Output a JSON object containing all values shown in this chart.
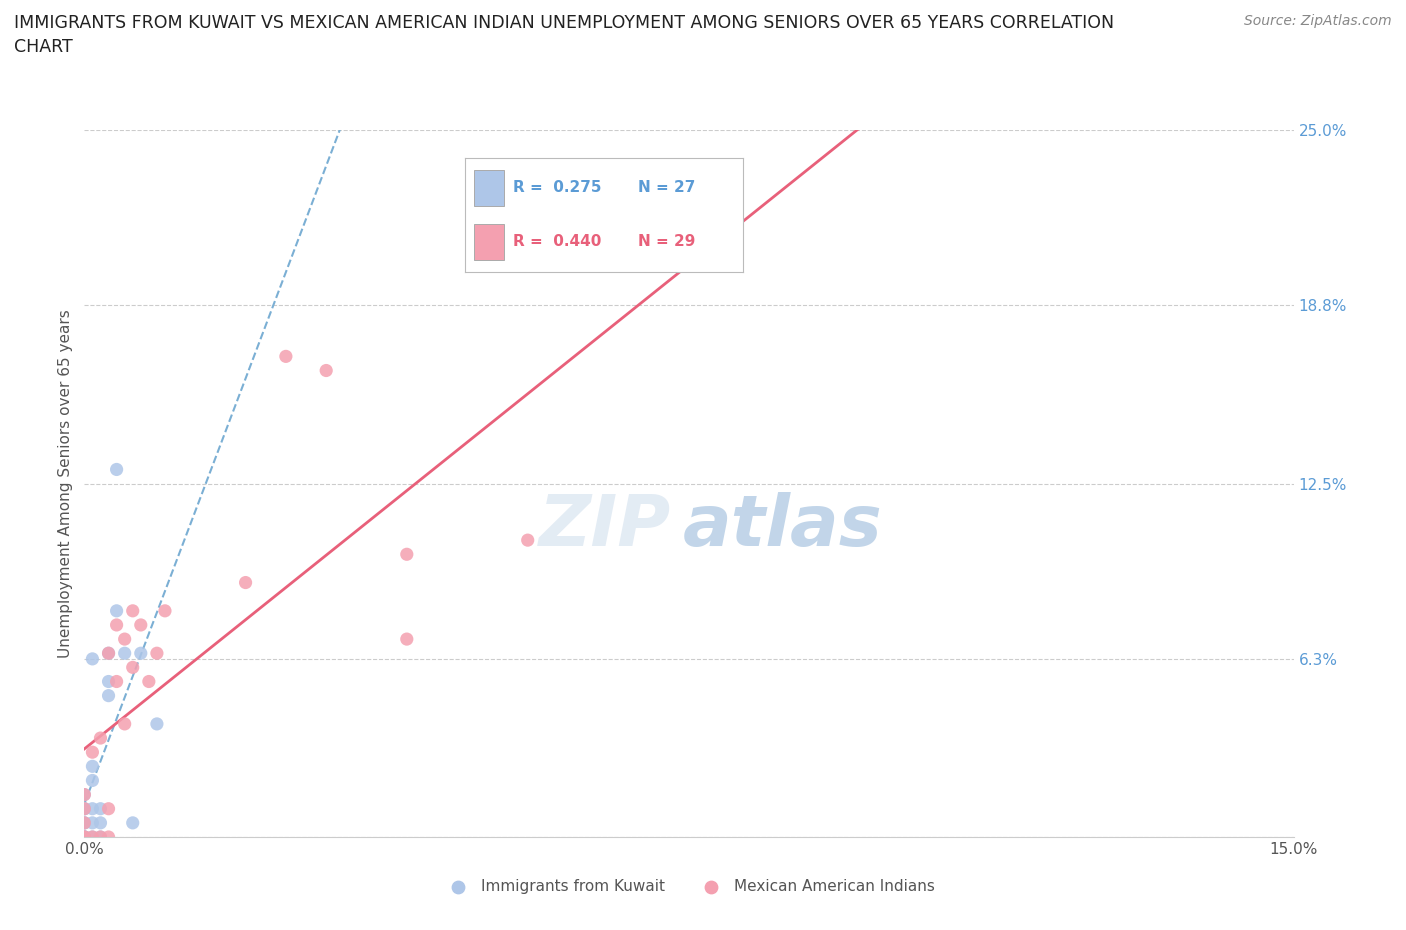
{
  "title": "IMMIGRANTS FROM KUWAIT VS MEXICAN AMERICAN INDIAN UNEMPLOYMENT AMONG SENIORS OVER 65 YEARS CORRELATION\nCHART",
  "source": "Source: ZipAtlas.com",
  "ylabel": "Unemployment Among Seniors over 65 years",
  "xlim": [
    0.0,
    0.15
  ],
  "ylim": [
    0.0,
    0.25
  ],
  "xticks": [
    0.0,
    0.03,
    0.06,
    0.09,
    0.12,
    0.15
  ],
  "xticklabels": [
    "0.0%",
    "",
    "",
    "",
    "",
    "15.0%"
  ],
  "yticks": [
    0.0,
    0.063,
    0.125,
    0.188,
    0.25
  ],
  "yticklabels": [
    "",
    "6.3%",
    "12.5%",
    "18.8%",
    "25.0%"
  ],
  "background_color": "#ffffff",
  "grid_color": "#cccccc",
  "kuwait_x": [
    0.0,
    0.0,
    0.0,
    0.0,
    0.0,
    0.0,
    0.0,
    0.0,
    0.0,
    0.001,
    0.001,
    0.001,
    0.001,
    0.001,
    0.001,
    0.002,
    0.002,
    0.002,
    0.003,
    0.003,
    0.003,
    0.004,
    0.004,
    0.005,
    0.006,
    0.007,
    0.009
  ],
  "kuwait_y": [
    0.0,
    0.0,
    0.0,
    0.0,
    0.005,
    0.005,
    0.01,
    0.01,
    0.015,
    0.0,
    0.005,
    0.01,
    0.02,
    0.025,
    0.063,
    0.0,
    0.005,
    0.01,
    0.05,
    0.055,
    0.065,
    0.08,
    0.13,
    0.065,
    0.005,
    0.065,
    0.04
  ],
  "kuwait_color": "#aec6e8",
  "kuwait_R": 0.275,
  "kuwait_N": 27,
  "kuwait_line_color": "#7bafd4",
  "kuwait_line_style": "--",
  "mexican_x": [
    0.0,
    0.0,
    0.0,
    0.0,
    0.0,
    0.001,
    0.001,
    0.002,
    0.002,
    0.003,
    0.003,
    0.003,
    0.004,
    0.004,
    0.005,
    0.005,
    0.006,
    0.006,
    0.007,
    0.008,
    0.009,
    0.01,
    0.02,
    0.025,
    0.03,
    0.04,
    0.04,
    0.055,
    0.075
  ],
  "mexican_y": [
    0.0,
    0.0,
    0.005,
    0.01,
    0.015,
    0.0,
    0.03,
    0.0,
    0.035,
    0.0,
    0.01,
    0.065,
    0.055,
    0.075,
    0.04,
    0.07,
    0.06,
    0.08,
    0.075,
    0.055,
    0.065,
    0.08,
    0.09,
    0.17,
    0.165,
    0.07,
    0.1,
    0.105,
    0.21
  ],
  "mexican_color": "#f4a0b0",
  "mexican_R": 0.44,
  "mexican_N": 29,
  "mexican_line_color": "#e8607a",
  "mexican_line_style": "-",
  "legend_box_color_kuwait": "#aec6e8",
  "legend_box_color_mexican": "#f4a0b0",
  "legend_R_kuwait": "R =  0.275",
  "legend_N_kuwait": "N = 27",
  "legend_R_mexican": "R =  0.440",
  "legend_N_mexican": "N = 29",
  "legend_R_color_kuwait": "#5b9bd5",
  "legend_N_color_kuwait": "#5b9bd5",
  "legend_R_color_mexican": "#e8607a",
  "legend_N_color_mexican": "#e8607a",
  "legend_label_kuwait": "Immigrants from Kuwait",
  "legend_label_mexican": "Mexican American Indians"
}
